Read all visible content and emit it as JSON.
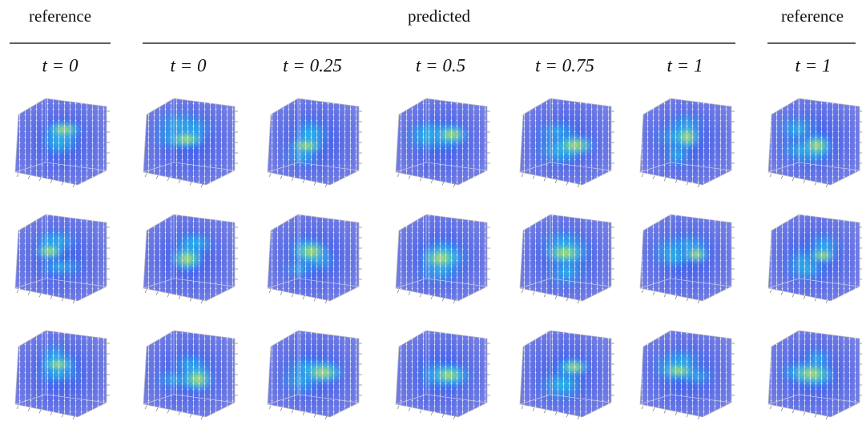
{
  "header_groups": [
    {
      "title": "reference"
    },
    {
      "title": "predicted"
    },
    {
      "title": "reference"
    }
  ],
  "column_labels": [
    "t = 0",
    "t = 0",
    "t = 0.25",
    "t = 0.5",
    "t = 0.75",
    "t = 1",
    "t = 1"
  ]
}
